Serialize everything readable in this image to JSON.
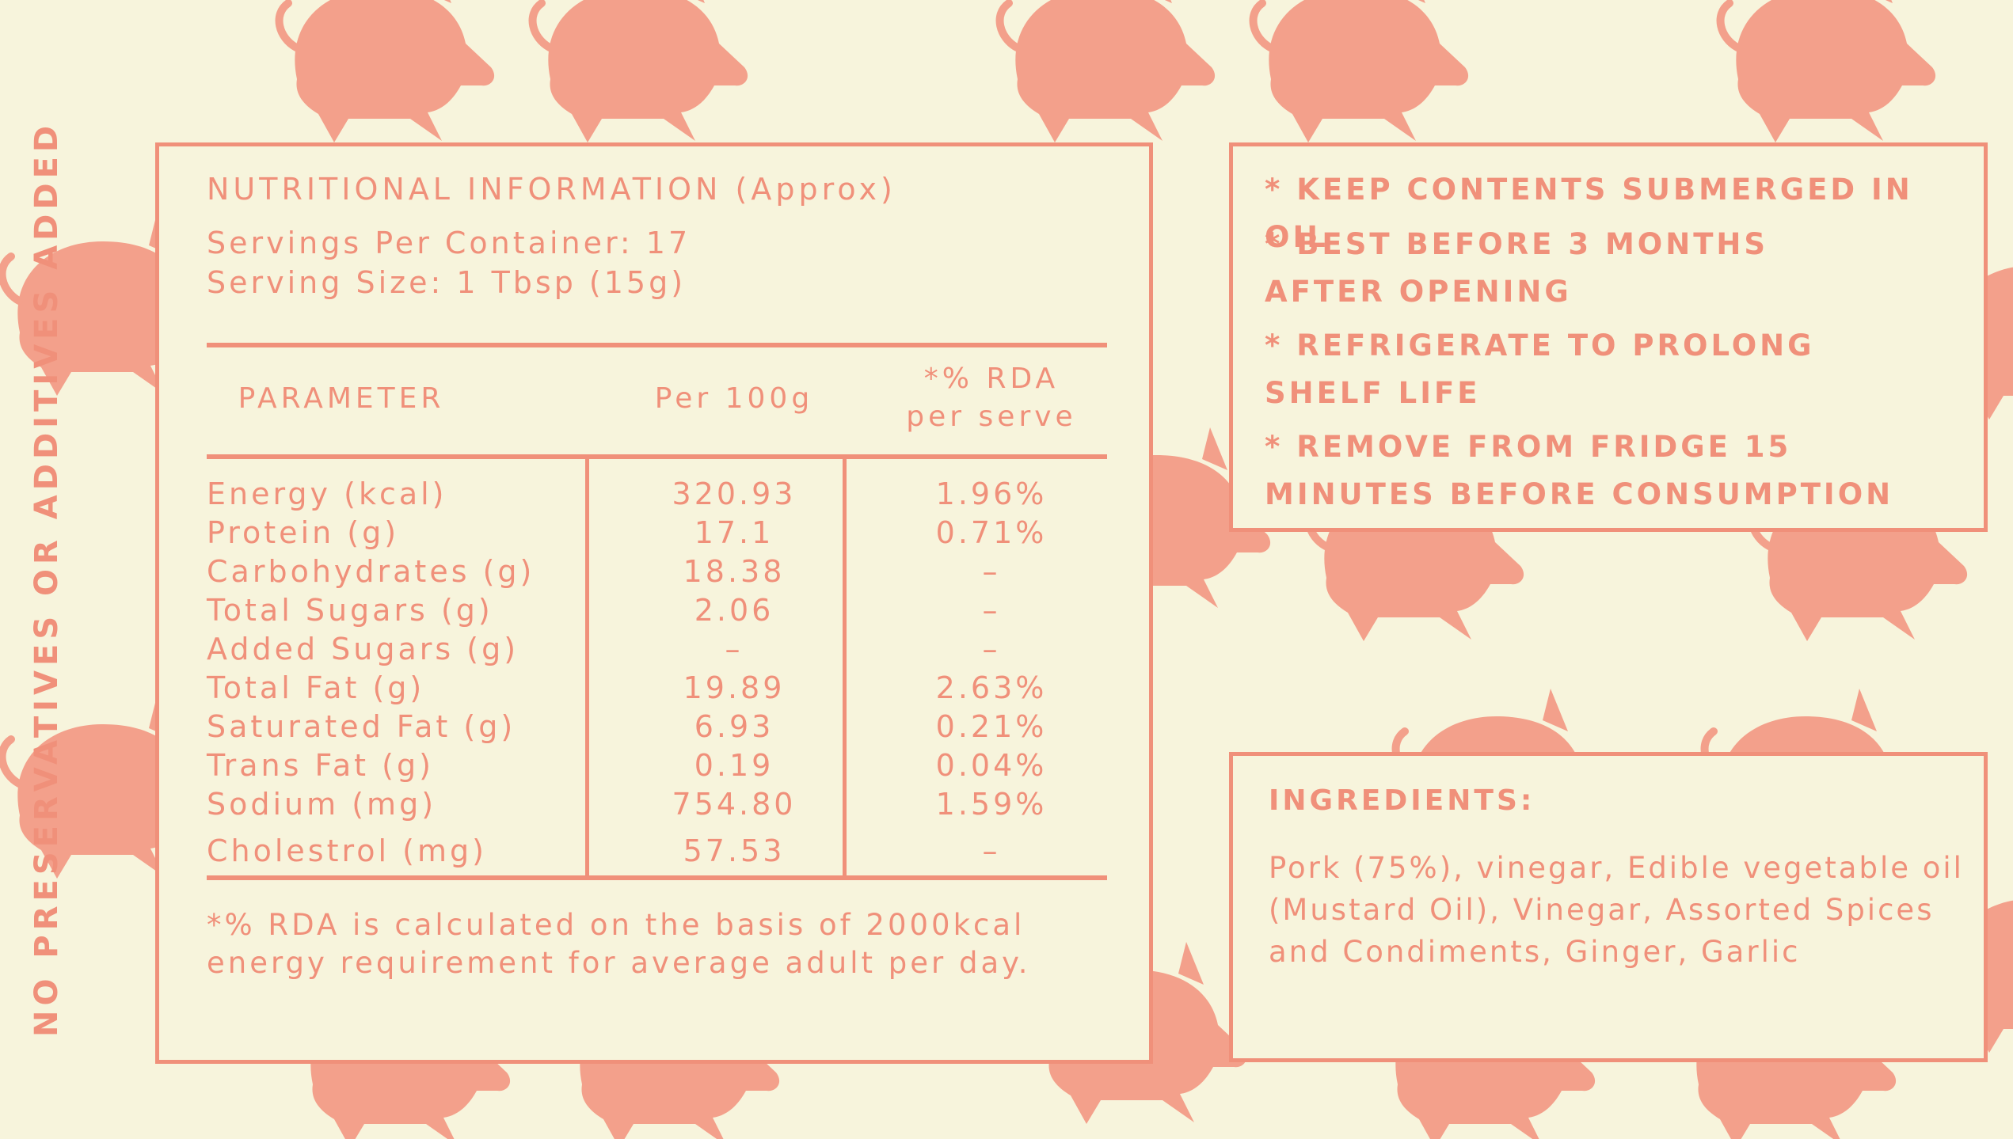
{
  "side_text": "NO PRESERVATIVES OR ADDITIVES ADDED",
  "nutrition": {
    "title": "NUTRITIONAL INFORMATION (Approx)",
    "servings_per_container": "Servings Per Container: 17",
    "serving_size": "Serving Size: 1 Tbsp (15g)",
    "headers": {
      "parameter": "PARAMETER",
      "per100": "Per 100g",
      "rda_line1": "*% RDA",
      "rda_line2": "per serve"
    },
    "rows": [
      {
        "name": "Energy (kcal)",
        "per100": "320.93",
        "rda": "1.96%"
      },
      {
        "name": "Protein (g)",
        "per100": "17.1",
        "rda": "0.71%"
      },
      {
        "name": "Carbohydrates (g)",
        "per100": "18.38",
        "rda": "–"
      },
      {
        "name": "Total Sugars (g)",
        "per100": "2.06",
        "rda": "–"
      },
      {
        "name": "Added Sugars (g)",
        "per100": "–",
        "rda": "–"
      },
      {
        "name": "Total Fat (g)",
        "per100": "19.89",
        "rda": "2.63%"
      },
      {
        "name": "Saturated Fat (g)",
        "per100": "6.93",
        "rda": "0.21%"
      },
      {
        "name": "Trans Fat (g)",
        "per100": "0.19",
        "rda": "0.04%"
      },
      {
        "name": "Sodium (mg)",
        "per100": "754.80",
        "rda": "1.59%"
      },
      {
        "name": "Cholestrol (mg)",
        "per100": "57.53",
        "rda": "–"
      }
    ],
    "footnote": "*% RDA is calculated on the basis of 2000kcal energy requirement for average adult per day."
  },
  "storage": [
    "* KEEP CONTENTS SUBMERGED IN OIL",
    "* BEST BEFORE 3 MONTHS AFTER OPENING",
    "* REFRIGERATE TO PROLONG SHELF LIFE",
    "* REMOVE FROM FRIDGE 15 MINUTES BEFORE CONSUMPTION"
  ],
  "ingredients": {
    "title": "INGREDIENTS:",
    "text": "Pork (75%), vinegar, Edible vegetable oil (Mustard Oil), Vinegar, Assorted Spices and Condiments, Ginger, Garlic"
  },
  "colors": {
    "background": "#f7f4dc",
    "accent": "#f0907a",
    "pig": "#f3a08b"
  }
}
